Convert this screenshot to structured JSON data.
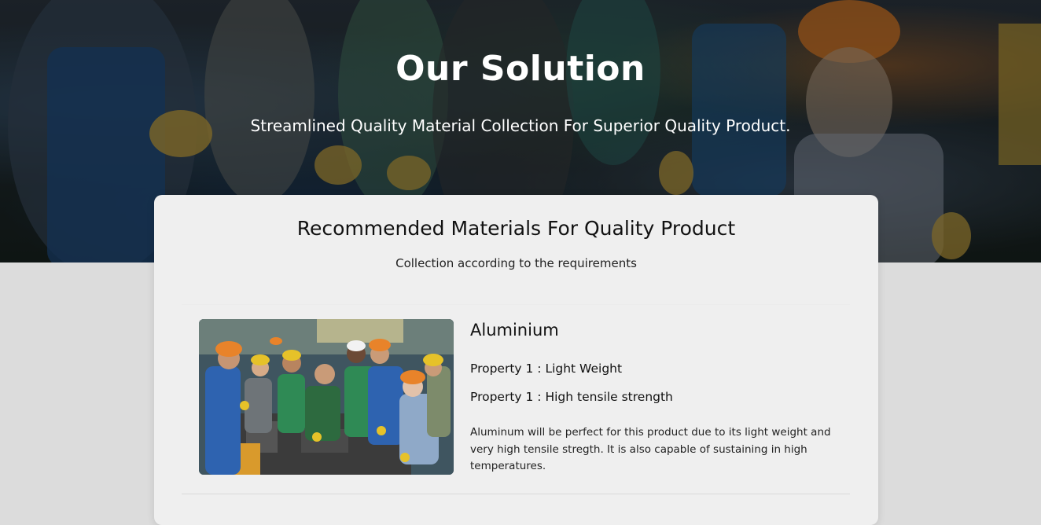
{
  "hero": {
    "title": "Our Solution",
    "subtitle": "Streamlined Quality Material Collection For Superior Quality Product."
  },
  "section": {
    "title": "Recommended Materials For Quality Product",
    "subtitle": "Collection according to the requirements"
  },
  "materials": [
    {
      "name": "Aluminium",
      "properties": [
        "Property 1 : Light Weight",
        "Property 1 : High tensile strength"
      ],
      "description": "Aluminum will be perfect for this product due to its light weight and very high tensile stregth. It is also capable of sustaining in high temperatures."
    }
  ],
  "colors": {
    "page_background": "#dcdcdc",
    "card_background": "#efefef",
    "hero_text": "#ffffff",
    "helmet_orange": "#e8832a",
    "helmet_yellow": "#e6c229"
  }
}
